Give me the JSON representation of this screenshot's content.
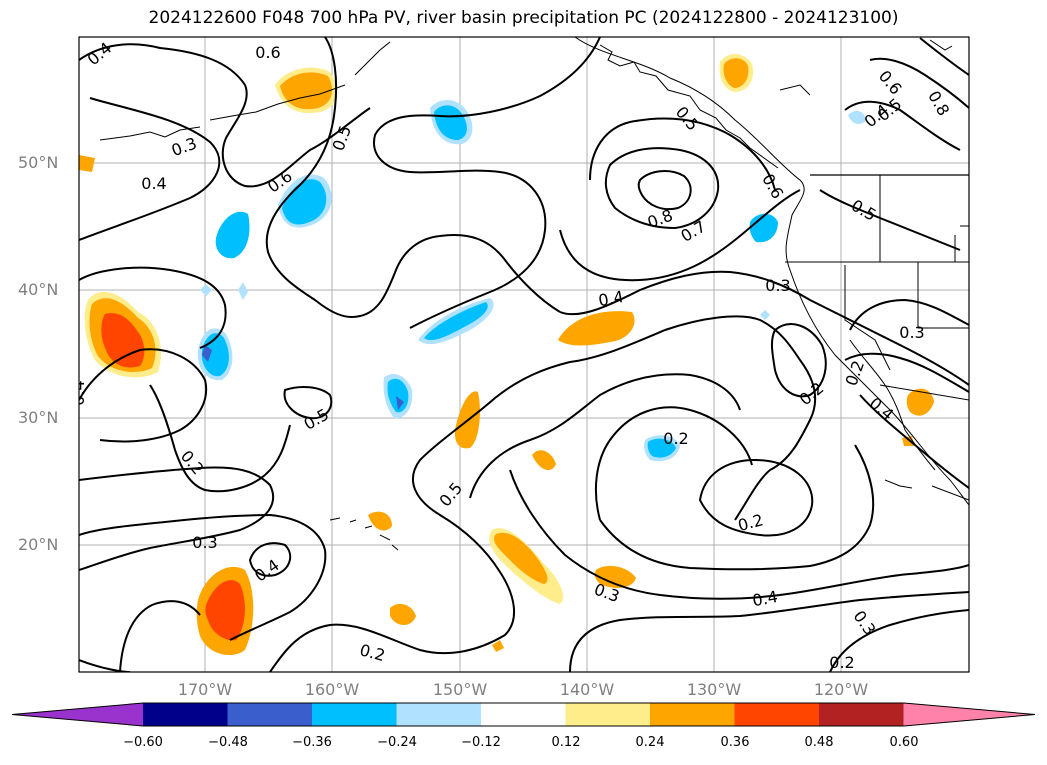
{
  "title": "2024122600 F048 700 hPa PV, river basin precipitation PC (2024122800 - 2024123100)",
  "lat_labels": [
    "50°N",
    "40°N",
    "30°N",
    "20°N"
  ],
  "lon_labels": [
    "170°W",
    "160°W",
    "150°W",
    "140°W",
    "130°W",
    "120°W"
  ],
  "colorbar": {
    "ticks": [
      "−0.60",
      "−0.48",
      "−0.36",
      "−0.24",
      "−0.12",
      "0.12",
      "0.24",
      "0.36",
      "0.48",
      "0.60"
    ],
    "colors": [
      "#9a32cd",
      "#00008b",
      "#3a5fcd",
      "#00bfff",
      "#b0e2ff",
      "#ffffff",
      "#ffec8b",
      "#ffa500",
      "#ff4500",
      "#b22222",
      "#ff82ab"
    ]
  },
  "contour_labels": [
    "0.4",
    "0.6",
    "0.5",
    "0.3",
    "0.4",
    "0.6",
    "0.5",
    "0.4",
    "0.2",
    "0.3",
    "0.5",
    "0.2",
    "0.4",
    "0.2",
    "0.3",
    "0.4",
    "0.8",
    "0.7",
    "0.6",
    "0.5",
    "0.3",
    "0.2",
    "0.5",
    "0.4",
    "0.3",
    "0.2",
    "0.2",
    "0.4",
    "0.3",
    "0.2",
    "0.6",
    "0.5",
    "0.4",
    "0.8"
  ]
}
